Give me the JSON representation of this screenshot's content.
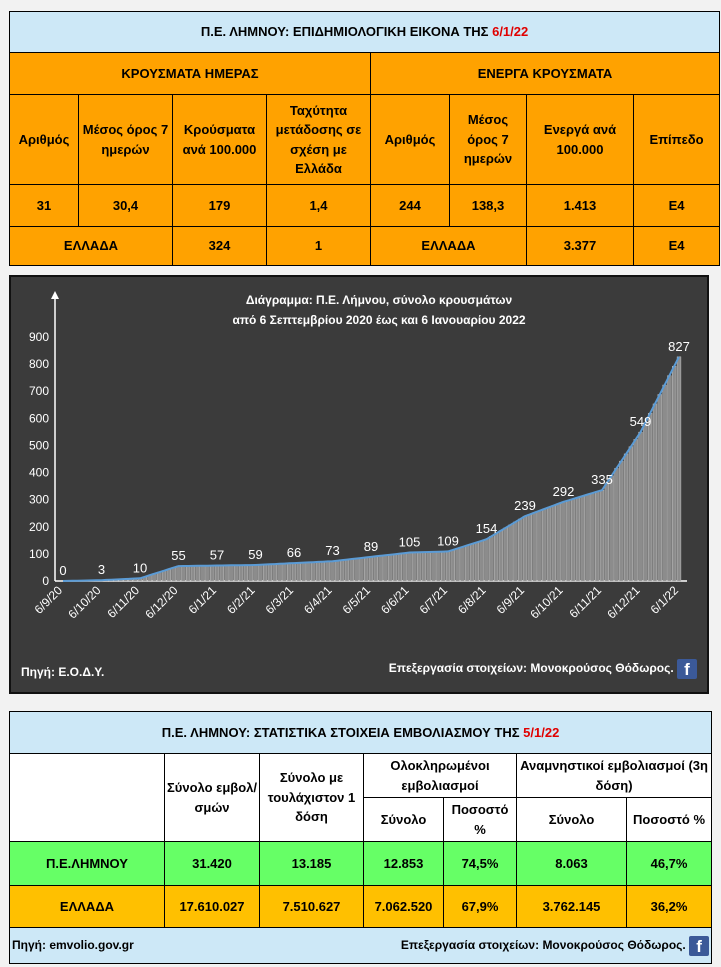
{
  "top_table": {
    "title_prefix": "Π.Ε. ΛΗΜΝΟΥ: ΕΠΙΔΗΜΙΟΛΟΓΙΚΗ ΕΙΚΟΝΑ ΤΗΣ",
    "title_date": "6/1/22",
    "section_daily": "ΚΡΟΥΣΜΑΤΑ ΗΜΕΡΑΣ",
    "section_active": "ΕΝΕΡΓΑ ΚΡΟΥΣΜΑΤΑ",
    "headers": [
      "Αριθμός",
      "Μέσος όρος 7 ημερών",
      "Κρούσματα ανά 100.000",
      "Ταχύτητα μετάδοσης σε σχέση με Ελλάδα",
      "Αριθμός",
      "Μέσος όρος 7 ημερών",
      "Ενεργά ανά 100.000",
      "Επίπεδο"
    ],
    "limnos_row": [
      "31",
      "30,4",
      "179",
      "1,4",
      "244",
      "138,3",
      "1.413",
      "Ε4"
    ],
    "greece_label": "ΕΛΛΑΔΑ",
    "greece_daily": [
      "324",
      "1"
    ],
    "greece_active": [
      "3.377",
      "Ε4"
    ]
  },
  "chart_panel": {
    "source": "Πηγή: Ε.Ο.Δ.Υ.",
    "credit": "Επεξεργασία  στοιχείων: Μονοκρούσος Θόδωρος.",
    "facebook_icon": "facebook-icon"
  },
  "chart_data": {
    "type": "area",
    "title": "Διάγραμμα:  Π.Ε. Λήμνου, σύνολο κρουσμάτων",
    "subtitle": "από 6 Σεπτεμβρίου 2020 έως και 6 Ιανουαρίου 2022",
    "x_tick_labels": [
      "6/9/20",
      "6/10/20",
      "6/11/20",
      "6/12/20",
      "6/1/21",
      "6/2/21",
      "6/3/21",
      "6/4/21",
      "6/5/21",
      "6/6/21",
      "6/7/21",
      "6/8/21",
      "6/9/21",
      "6/10/21",
      "6/11/21",
      "6/12/21",
      "6/1/22"
    ],
    "y_ticks": [
      0,
      100,
      200,
      300,
      400,
      500,
      600,
      700,
      800,
      900
    ],
    "ylim": [
      0,
      900
    ],
    "monthly_values": [
      0,
      3,
      10,
      55,
      57,
      59,
      66,
      73,
      89,
      105,
      109,
      154,
      239,
      292,
      335,
      549,
      827
    ],
    "series_color": "#5b9bd5",
    "bar_color": "#bfbfbf",
    "background": "#3b3b3b"
  },
  "bottom_table": {
    "title_prefix": "Π.Ε. ΛΗΜΝΟΥ: ΣΤΑΤΙΣΤΙΚΑ ΣΤΟΙΧΕΙΑ ΕΜΒΟΛΙΑΣΜΟΥ ΤΗΣ",
    "title_date": "5/1/22",
    "h_total": "Σύνολο εμβολ/σμών",
    "h_one_dose": "Σύνολο με τουλάχιστον 1 δόση",
    "h_completed": "Ολοκληρωμένοι εμβολιασμοί",
    "h_booster": "Αναμνηστικοί εμβολιασμοί (3η δόση)",
    "sub_total": "Σύνολο",
    "sub_pct": "Ποσοστό %",
    "rows": [
      {
        "label": "Π.Ε.ΛΗΜΝΟΥ",
        "values": [
          "31.420",
          "13.185",
          "12.853",
          "74,5%",
          "8.063",
          "46,7%"
        ]
      },
      {
        "label": "ΕΛΛΑΔΑ",
        "values": [
          "17.610.027",
          "7.510.627",
          "7.062.520",
          "67,9%",
          "3.762.145",
          "36,2%"
        ]
      }
    ],
    "source": "Πηγή: emvolio.gov.gr",
    "credit": "Επεξεργασία στοιχείων: Μονοκρούσος Θόδωρος.",
    "facebook_icon": "facebook-icon"
  },
  "colors": {
    "orange": "#ffa200",
    "gold": "#ffc000",
    "green": "#66ff66",
    "light_blue": "#cde8f7",
    "red": "#e00000",
    "facebook": "#3b5998"
  }
}
